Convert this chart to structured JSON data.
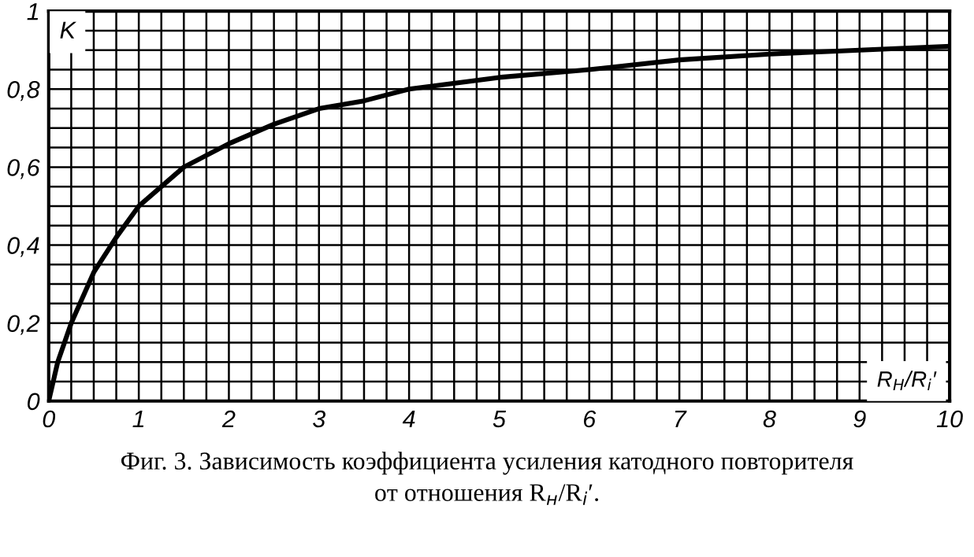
{
  "chart_data": {
    "type": "line",
    "xlabel": "R$_{H}$/R$_{i}$′",
    "ylabel": "K",
    "annotations": [
      "Фиг. 3. Зависимость коэффициента усиления катодного повторителя\nот отношения R$_{н}$/R$_{i}$′."
    ],
    "x": [
      0,
      0.1,
      0.25,
      0.5,
      0.75,
      1,
      1.5,
      2,
      2.5,
      3,
      3.5,
      4,
      5,
      6,
      7,
      8,
      9,
      10
    ],
    "series": [
      {
        "color": "#000000",
        "values": [
          0,
          0.1,
          0.2,
          0.33,
          0.42,
          0.5,
          0.6,
          0.66,
          0.71,
          0.75,
          0.77,
          0.8,
          0.83,
          0.85,
          0.875,
          0.89,
          0.9,
          0.91
        ]
      }
    ],
    "xlim": [
      0,
      10
    ],
    "ylim": [
      0,
      1
    ],
    "xticks": [
      0,
      {
        "value": 0.25,
        "label": null
      },
      {
        "value": 0.5,
        "label": null
      },
      {
        "value": 0.75,
        "label": null
      },
      1,
      {
        "value": 1.25,
        "label": null
      },
      {
        "value": 1.5,
        "label": null
      },
      {
        "value": 1.75,
        "label": null
      },
      2,
      {
        "value": 2.25,
        "label": null
      },
      {
        "value": 2.5,
        "label": null
      },
      {
        "value": 2.75,
        "label": null
      },
      3,
      {
        "value": 3.25,
        "label": null
      },
      {
        "value": 3.5,
        "label": null
      },
      {
        "value": 3.75,
        "label": null
      },
      4,
      {
        "value": 4.25,
        "label": null
      },
      {
        "value": 4.5,
        "label": null
      },
      {
        "value": 4.75,
        "label": null
      },
      5,
      {
        "value": 5.25,
        "label": null
      },
      {
        "value": 5.5,
        "label": null
      },
      {
        "value": 5.75,
        "label": null
      },
      6,
      {
        "value": 6.25,
        "label": null
      },
      {
        "value": 6.5,
        "label": null
      },
      {
        "value": 6.75,
        "label": null
      },
      7,
      {
        "value": 7.25,
        "label": null
      },
      {
        "value": 7.5,
        "label": null
      },
      {
        "value": 7.75,
        "label": null
      },
      8,
      {
        "value": 8.25,
        "label": null
      },
      {
        "value": 8.5,
        "label": null
      },
      {
        "value": 8.75,
        "label": null
      },
      9,
      {
        "value": 9.25,
        "label": null
      },
      {
        "value": 9.5,
        "label": null
      },
      {
        "value": 9.75,
        "label": null
      },
      10
    ],
    "yticks": [
      0,
      {
        "value": 0.05,
        "label": null
      },
      {
        "value": 0.1,
        "label": null
      },
      {
        "value": 0.15,
        "label": null
      },
      {
        "value": 0.2,
        "label": "0,2"
      },
      {
        "value": 0.25,
        "label": null
      },
      {
        "value": 0.3,
        "label": null
      },
      {
        "value": 0.35,
        "label": null
      },
      {
        "value": 0.4,
        "label": "0,4"
      },
      {
        "value": 0.45,
        "label": null
      },
      {
        "value": 0.5,
        "label": null
      },
      {
        "value": 0.55,
        "label": null
      },
      {
        "value": 0.6,
        "label": "0,6"
      },
      {
        "value": 0.65,
        "label": null
      },
      {
        "value": 0.7,
        "label": null
      },
      {
        "value": 0.75,
        "label": null
      },
      {
        "value": 0.8,
        "label": "0,8"
      },
      {
        "value": 0.85,
        "label": null
      },
      {
        "value": 0.9,
        "label": null
      },
      {
        "value": 0.95,
        "label": null
      },
      1
    ],
    "grid": true,
    "marker": "none",
    "line_style": "solid"
  }
}
